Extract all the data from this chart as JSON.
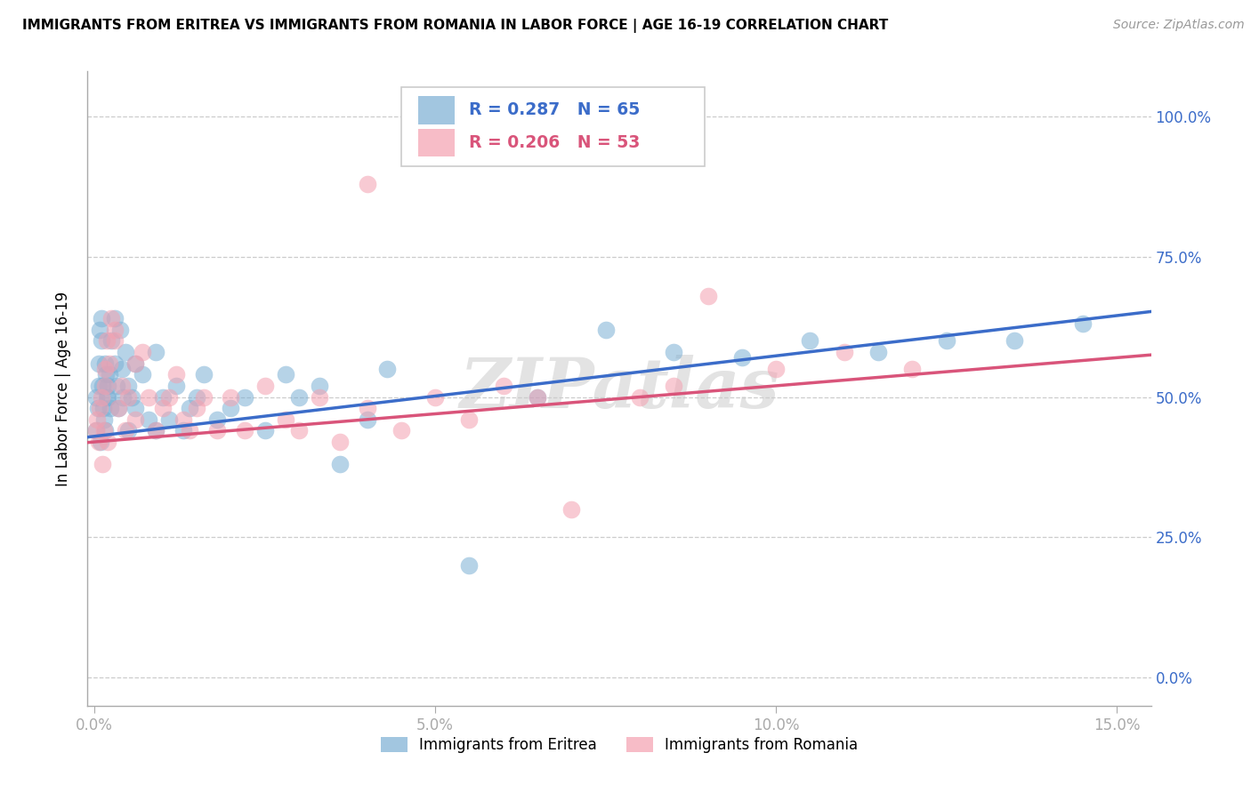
{
  "title": "IMMIGRANTS FROM ERITREA VS IMMIGRANTS FROM ROMANIA IN LABOR FORCE | AGE 16-19 CORRELATION CHART",
  "source": "Source: ZipAtlas.com",
  "ylabel": "In Labor Force | Age 16-19",
  "xlim": [
    -0.001,
    0.155
  ],
  "ylim": [
    -0.05,
    1.08
  ],
  "ytick_vals": [
    0.0,
    0.25,
    0.5,
    0.75,
    1.0
  ],
  "ytick_labels": [
    "0.0%",
    "25.0%",
    "50.0%",
    "75.0%",
    "100.0%"
  ],
  "xtick_vals": [
    0.0,
    0.05,
    0.1,
    0.15
  ],
  "xtick_labels": [
    "0.0%",
    "5.0%",
    "10.0%",
    "15.0%"
  ],
  "r_eritrea": 0.287,
  "n_eritrea": 65,
  "r_romania": 0.206,
  "n_romania": 53,
  "color_eritrea": "#7BAFD4",
  "color_romania": "#F4A0B0",
  "line_color_eritrea": "#3B6CC9",
  "line_color_romania": "#D9547A",
  "legend_labels": [
    "Immigrants from Eritrea",
    "Immigrants from Romania"
  ],
  "eritrea_x": [
    0.0002,
    0.0003,
    0.0005,
    0.0006,
    0.0007,
    0.0008,
    0.0009,
    0.001,
    0.001,
    0.0012,
    0.0013,
    0.0014,
    0.0015,
    0.0016,
    0.0017,
    0.0018,
    0.002,
    0.002,
    0.0022,
    0.0023,
    0.0025,
    0.003,
    0.003,
    0.0032,
    0.0035,
    0.0038,
    0.004,
    0.0042,
    0.0045,
    0.005,
    0.005,
    0.0055,
    0.006,
    0.006,
    0.007,
    0.008,
    0.009,
    0.009,
    0.01,
    0.011,
    0.012,
    0.013,
    0.014,
    0.015,
    0.016,
    0.018,
    0.02,
    0.022,
    0.025,
    0.028,
    0.03,
    0.033,
    0.036,
    0.04,
    0.043,
    0.055,
    0.065,
    0.075,
    0.085,
    0.095,
    0.105,
    0.115,
    0.125,
    0.135,
    0.145
  ],
  "eritrea_y": [
    0.44,
    0.5,
    0.48,
    0.52,
    0.56,
    0.62,
    0.42,
    0.64,
    0.6,
    0.52,
    0.48,
    0.46,
    0.44,
    0.56,
    0.54,
    0.5,
    0.52,
    0.5,
    0.54,
    0.48,
    0.6,
    0.56,
    0.64,
    0.52,
    0.48,
    0.62,
    0.55,
    0.5,
    0.58,
    0.44,
    0.52,
    0.5,
    0.56,
    0.48,
    0.54,
    0.46,
    0.44,
    0.58,
    0.5,
    0.46,
    0.52,
    0.44,
    0.48,
    0.5,
    0.54,
    0.46,
    0.48,
    0.5,
    0.44,
    0.54,
    0.5,
    0.52,
    0.38,
    0.46,
    0.55,
    0.2,
    0.5,
    0.62,
    0.58,
    0.57,
    0.6,
    0.58,
    0.6,
    0.6,
    0.63
  ],
  "romania_x": [
    0.0002,
    0.0004,
    0.0006,
    0.0008,
    0.001,
    0.0012,
    0.0014,
    0.0015,
    0.0016,
    0.0018,
    0.002,
    0.0022,
    0.0025,
    0.003,
    0.003,
    0.0035,
    0.004,
    0.0045,
    0.005,
    0.006,
    0.006,
    0.007,
    0.008,
    0.009,
    0.01,
    0.011,
    0.012,
    0.013,
    0.014,
    0.015,
    0.016,
    0.018,
    0.02,
    0.022,
    0.025,
    0.028,
    0.03,
    0.033,
    0.036,
    0.04,
    0.04,
    0.045,
    0.05,
    0.055,
    0.06,
    0.065,
    0.07,
    0.08,
    0.085,
    0.09,
    0.1,
    0.11,
    0.12
  ],
  "romania_y": [
    0.44,
    0.46,
    0.42,
    0.48,
    0.5,
    0.38,
    0.44,
    0.52,
    0.55,
    0.6,
    0.42,
    0.56,
    0.64,
    0.6,
    0.62,
    0.48,
    0.52,
    0.44,
    0.5,
    0.56,
    0.46,
    0.58,
    0.5,
    0.44,
    0.48,
    0.5,
    0.54,
    0.46,
    0.44,
    0.48,
    0.5,
    0.44,
    0.5,
    0.44,
    0.52,
    0.46,
    0.44,
    0.5,
    0.42,
    0.88,
    0.48,
    0.44,
    0.5,
    0.46,
    0.52,
    0.5,
    0.3,
    0.5,
    0.52,
    0.68,
    0.55,
    0.58,
    0.55
  ],
  "bg_color": "#FFFFFF",
  "grid_color": "#CCCCCC",
  "tick_color": "#3B6CC9",
  "spine_color": "#AAAAAA"
}
